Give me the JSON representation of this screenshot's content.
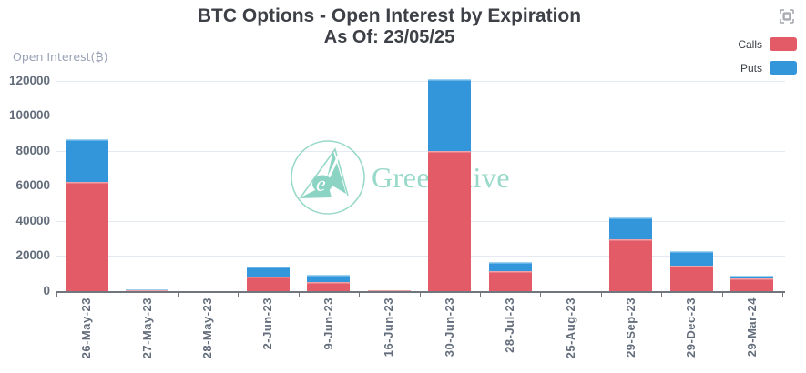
{
  "header": {
    "title": "BTC Options - Open Interest by Expiration",
    "subtitle": "As Of: 23/05/25"
  },
  "y_axis_name": "Open Interest(₿)",
  "legend": {
    "position": "top-right",
    "items": [
      {
        "label": "Calls",
        "color": "#e25b66",
        "edge_color": "#f0a2a8"
      },
      {
        "label": "Puts",
        "color": "#3496da",
        "edge_color": "#9bd2f2"
      }
    ]
  },
  "toolbar": {
    "snapshot_icon": "save-as-image"
  },
  "watermark": {
    "text": "Greeks.live",
    "color": "#8ed5c4"
  },
  "chart_data": {
    "type": "bar",
    "stacked": true,
    "title": "BTC Options - Open Interest by Expiration",
    "subtitle": "As Of: 23/05/25",
    "categories": [
      "26-May-23",
      "27-May-23",
      "28-May-23",
      "2-Jun-23",
      "9-Jun-23",
      "16-Jun-23",
      "30-Jun-23",
      "28-Jul-23",
      "25-Aug-23",
      "29-Sep-23",
      "29-Dec-23",
      "29-Mar-24"
    ],
    "series": [
      {
        "name": "Calls",
        "color": "#e25b66",
        "values": [
          62000,
          500,
          0,
          8300,
          5200,
          300,
          79800,
          11500,
          0,
          29500,
          14700,
          7400
        ]
      },
      {
        "name": "Puts",
        "color": "#3496da",
        "values": [
          24500,
          500,
          0,
          5500,
          4000,
          0,
          41000,
          5000,
          0,
          12500,
          8100,
          1600
        ]
      }
    ],
    "xlabel": "",
    "ylabel": "Open Interest(₿)",
    "ylim": [
      0,
      120000
    ],
    "ytick_step": 20000,
    "y_ticks": [
      "0",
      "20000",
      "40000",
      "60000",
      "80000",
      "100000",
      "120000"
    ],
    "grid": true,
    "legend_position": "top-right"
  }
}
